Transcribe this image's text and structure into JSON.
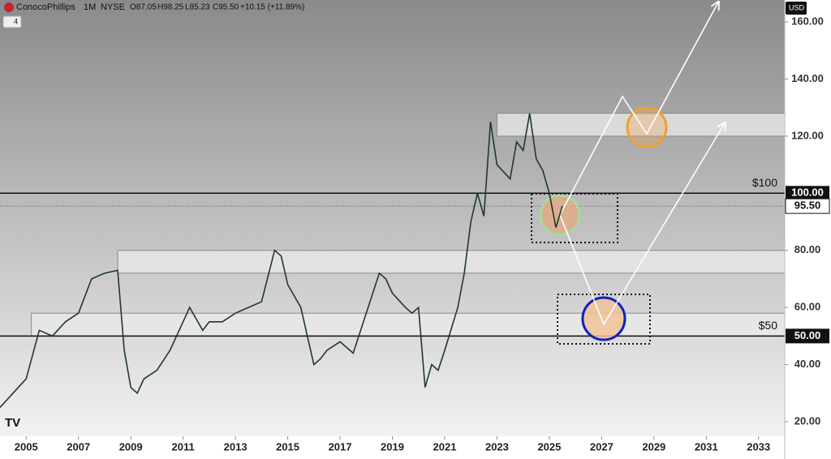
{
  "chart_data": {
    "type": "line",
    "title": "ConocoPhillips",
    "interval": "1M",
    "exchange": "NYSE",
    "ohlc": [
      "O87.05",
      "H98.25",
      "L85.23",
      "C95.50",
      "+10.15 (+11.89%)"
    ],
    "indicator_count": "4",
    "currency": "USD",
    "color": "#1f3a24",
    "x": [
      2004.0,
      2004.5,
      2005.0,
      2005.5,
      2006.0,
      2006.5,
      2007.0,
      2007.5,
      2008.0,
      2008.5,
      2008.75,
      2009.0,
      2009.25,
      2009.5,
      2010.0,
      2010.5,
      2011.0,
      2011.25,
      2011.75,
      2012.0,
      2012.5,
      2013.0,
      2013.5,
      2014.0,
      2014.5,
      2014.75,
      2015.0,
      2015.5,
      2015.75,
      2016.0,
      2016.25,
      2016.5,
      2017.0,
      2017.5,
      2018.0,
      2018.5,
      2018.75,
      2019.0,
      2019.5,
      2019.75,
      2020.0,
      2020.25,
      2020.5,
      2020.75,
      2021.0,
      2021.5,
      2021.75,
      2022.0,
      2022.25,
      2022.5,
      2022.75,
      2023.0,
      2023.5,
      2023.75,
      2024.0,
      2024.25,
      2024.5,
      2024.75,
      2025.0,
      2025.25,
      2025.5
    ],
    "values": [
      25,
      30,
      35,
      52,
      50,
      55,
      58,
      70,
      72,
      73,
      45,
      32,
      30,
      35,
      38,
      45,
      55,
      60,
      52,
      55,
      55,
      58,
      60,
      62,
      80,
      78,
      68,
      60,
      50,
      40,
      42,
      45,
      48,
      44,
      58,
      72,
      70,
      65,
      60,
      58,
      60,
      32,
      40,
      38,
      45,
      60,
      72,
      90,
      100,
      92,
      125,
      110,
      105,
      118,
      115,
      128,
      112,
      108,
      100,
      88,
      95.5
    ],
    "xlim": [
      2004.0,
      2034.0
    ],
    "ylim": [
      20,
      160
    ],
    "xticks": [
      2005,
      2007,
      2009,
      2011,
      2013,
      2015,
      2017,
      2019,
      2021,
      2023,
      2025,
      2027,
      2029,
      2031,
      2033
    ],
    "yticks": [
      {
        "value": 20,
        "label": "20.00"
      },
      {
        "value": 40,
        "label": "40.00"
      },
      {
        "value": 60,
        "label": "60.00"
      },
      {
        "value": 80,
        "label": "80.00"
      },
      {
        "value": 120,
        "label": "120.00"
      },
      {
        "value": 140,
        "label": "140.00"
      },
      {
        "value": 160,
        "label": "160.00"
      }
    ],
    "levels": [
      {
        "value": 100,
        "label": "$100",
        "price_label": "100.00"
      },
      {
        "value": 50,
        "label": "$50",
        "price_label": "50.00"
      }
    ],
    "last_price": {
      "value": 95.5,
      "label": "95.50"
    },
    "zones": [
      {
        "start": 2023.0,
        "low": 120,
        "high": 128
      },
      {
        "start": 2008.5,
        "low": 72,
        "high": 80
      },
      {
        "start": 2005.2,
        "low": 50,
        "high": 58
      }
    ]
  }
}
